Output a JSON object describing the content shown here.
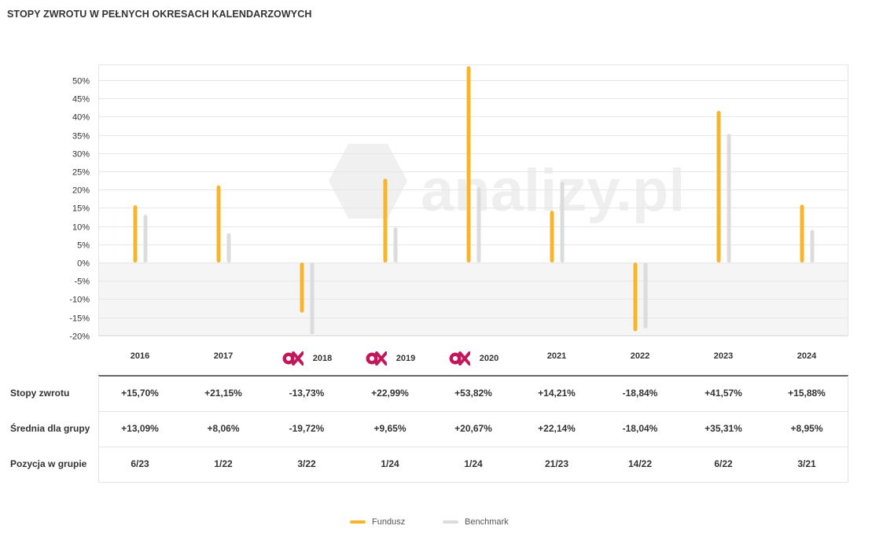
{
  "title": "STOPY ZWROTU W PEŁNYCH OKRESACH KALENDARZOWYCH",
  "watermark": "analizy.pl",
  "colors": {
    "fund": "#f7b52c",
    "benchmark": "#dcdcdc",
    "badge": "#c2185b"
  },
  "legend": {
    "fund": "Fundusz",
    "benchmark": "Benchmark"
  },
  "chart_data": {
    "type": "bar",
    "categories": [
      "2016",
      "2017",
      "2018",
      "2019",
      "2020",
      "2021",
      "2022",
      "2023",
      "2024"
    ],
    "badge_years": [
      "2018",
      "2019",
      "2020"
    ],
    "series": [
      {
        "name": "Fundusz",
        "values": [
          15.7,
          21.15,
          -13.73,
          22.99,
          53.82,
          14.21,
          -18.84,
          41.57,
          15.88
        ]
      },
      {
        "name": "Benchmark",
        "values": [
          13.09,
          8.06,
          -19.72,
          9.65,
          20.67,
          22.14,
          -18.04,
          35.31,
          8.95
        ]
      }
    ],
    "ylim": [
      -20,
      54
    ],
    "yticks": [
      -20,
      -15,
      -10,
      -5,
      0,
      5,
      10,
      15,
      20,
      25,
      30,
      35,
      40,
      45,
      50
    ],
    "ytick_labels": [
      "-20%",
      "-15%",
      "-10%",
      "-5%",
      "0%",
      "5%",
      "10%",
      "15%",
      "20%",
      "25%",
      "30%",
      "35%",
      "40%",
      "45%",
      "50%"
    ],
    "grid": true,
    "legend_position": "bottom-center"
  },
  "table": {
    "rows": [
      {
        "label": "Stopy zwrotu",
        "values": [
          "+15,70%",
          "+21,15%",
          "-13,73%",
          "+22,99%",
          "+53,82%",
          "+14,21%",
          "-18,84%",
          "+41,57%",
          "+15,88%"
        ]
      },
      {
        "label": "Średnia dla grupy",
        "values": [
          "+13,09%",
          "+8,06%",
          "-19,72%",
          "+9,65%",
          "+20,67%",
          "+22,14%",
          "-18,04%",
          "+35,31%",
          "+8,95%"
        ]
      },
      {
        "label": "Pozycja w grupie",
        "values": [
          "6/23",
          "1/22",
          "3/22",
          "1/24",
          "1/24",
          "21/23",
          "14/22",
          "6/22",
          "3/21"
        ]
      }
    ]
  }
}
